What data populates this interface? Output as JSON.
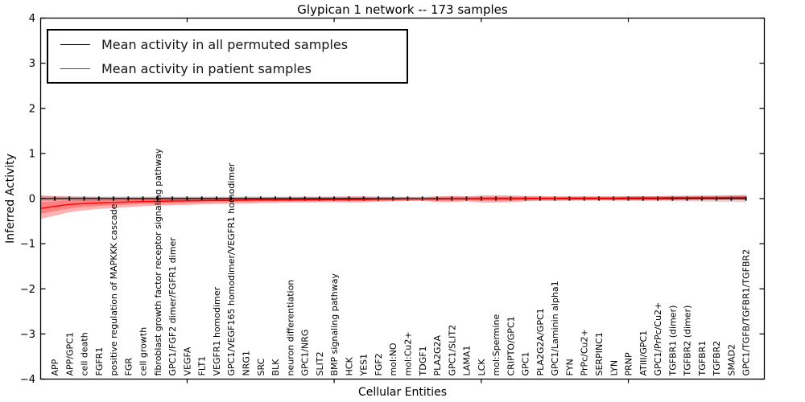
{
  "title": "Glypican 1 network -- 173 samples",
  "legend": {
    "items": [
      {
        "label": "Mean activity in all permuted samples",
        "color": "#000000"
      },
      {
        "label": "Mean activity in patient samples",
        "color": "#ff0000"
      }
    ]
  },
  "colors": {
    "permuted_line": "#000000",
    "permuted_band": "#d9d9d9",
    "patient_line": "#ff0000",
    "patient_band": "rgba(255,0,0,0.30)"
  },
  "chart_data": {
    "type": "line",
    "title": "Glypican 1 network -- 173 samples",
    "xlabel": "Cellular Entities",
    "ylabel": "Inferred Activity",
    "ylim": [
      -4,
      4
    ],
    "yticks": [
      4,
      3,
      2,
      1,
      0,
      -1,
      -2,
      -3,
      -4
    ],
    "grid": false,
    "legend_position": "upper left",
    "major_xtick_indices": [
      9,
      19,
      29,
      39
    ],
    "categories": [
      "APP",
      "APP/GPC1",
      "cell death",
      "FGFR1",
      "positive regulation of MAPKKK cascade",
      "FGR",
      "cell growth",
      "fibroblast growth factor receptor signaling pathway",
      "GPC1/FGF2 dimer/FGFR1 dimer",
      "VEGFA",
      "FLT1",
      "VEGFR1 homodimer",
      "GPC1/VEGF165 homodimer/VEGFR1 homodimer",
      "NRG1",
      "SRC",
      "BLK",
      "neuron differentiation",
      "GPC1/NRG",
      "SLIT2",
      "BMP signaling pathway",
      "HCK",
      "YES1",
      "FGF2",
      "mol:NO",
      "mol:Cu2+",
      "TDGF1",
      "PLA2G2A",
      "GPC1/SLIT2",
      "LAMA1",
      "LCK",
      "mol:Spermine",
      "CRIPTO/GPC1",
      "GPC1",
      "PLA2G2A/GPC1",
      "GPC1/Laminin alpha1",
      "FYN",
      "PrPc/Cu2+",
      "SERPINC1",
      "LYN",
      "PRNP",
      "ATIII/GPC1",
      "GPC1/PrPc/Cu2+",
      "TGFBR1 (dimer)",
      "TGFBR2 (dimer)",
      "TGFBR1",
      "TGFBR2",
      "SMAD2",
      "GPC1/TGFB/TGFBR1/TGFBR2"
    ],
    "series": [
      {
        "name": "Mean activity in all permuted samples",
        "color": "#000000",
        "constant_value": 0,
        "band_half": [
          0.05,
          0.05,
          0.05,
          0.045,
          0.045,
          0.045,
          0.045,
          0.045,
          0.045,
          0.045,
          0.045,
          0.045,
          0.045,
          0.045,
          0.045,
          0.045,
          0.045,
          0.045,
          0.045,
          0.045,
          0.045,
          0.045,
          0.045,
          0.045,
          0.045,
          0.045,
          0.045,
          0.045,
          0.045,
          0.045,
          0.045,
          0.045,
          0.045,
          0.045,
          0.045,
          0.045,
          0.045,
          0.045,
          0.045,
          0.05,
          0.055,
          0.055,
          0.06,
          0.06,
          0.065,
          0.07,
          0.075,
          0.08
        ]
      },
      {
        "name": "Mean activity in patient samples",
        "color": "#ff0000",
        "values": [
          -0.17,
          -0.13,
          -0.11,
          -0.095,
          -0.085,
          -0.075,
          -0.065,
          -0.06,
          -0.055,
          -0.05,
          -0.045,
          -0.04,
          -0.04,
          -0.035,
          -0.03,
          -0.03,
          -0.03,
          -0.025,
          -0.025,
          -0.02,
          -0.02,
          -0.02,
          -0.015,
          -0.015,
          -0.01,
          -0.01,
          -0.01,
          -0.005,
          -0.005,
          0,
          0,
          0,
          0.005,
          0.005,
          0.005,
          0.01,
          0.01,
          0.01,
          0.01,
          0.015,
          0.015,
          0.015,
          0.02,
          0.02,
          0.02,
          0.02,
          0.025,
          0.025
        ],
        "band_lo": [
          -0.38,
          -0.3,
          -0.26,
          -0.23,
          -0.21,
          -0.19,
          -0.17,
          -0.16,
          -0.15,
          -0.14,
          -0.13,
          -0.12,
          -0.115,
          -0.11,
          -0.1,
          -0.095,
          -0.09,
          -0.09,
          -0.085,
          -0.08,
          -0.09,
          -0.085,
          -0.07,
          -0.06,
          -0.055,
          -0.05,
          -0.075,
          -0.08,
          -0.06,
          -0.09,
          -0.09,
          -0.08,
          -0.06,
          -0.05,
          -0.05,
          -0.045,
          -0.04,
          -0.04,
          -0.04,
          -0.04,
          -0.04,
          -0.035,
          -0.035,
          -0.03,
          -0.03,
          -0.03,
          -0.03,
          -0.035
        ],
        "band_hi": [
          0.055,
          0.045,
          0.04,
          0.035,
          0.03,
          0.03,
          0.03,
          0.03,
          0.03,
          0.03,
          0.03,
          0.03,
          0.03,
          0.03,
          0.03,
          0.035,
          0.035,
          0.04,
          0.04,
          0.04,
          0.05,
          0.05,
          0.04,
          0.035,
          0.035,
          0.03,
          0.05,
          0.06,
          0.05,
          0.07,
          0.075,
          0.07,
          0.06,
          0.055,
          0.05,
          0.05,
          0.05,
          0.05,
          0.05,
          0.055,
          0.055,
          0.055,
          0.06,
          0.06,
          0.065,
          0.065,
          0.07,
          0.075
        ]
      }
    ],
    "left_edge_extrapolation": {
      "patient_mean": -0.22,
      "patient_lo": -0.45,
      "patient_hi": 0.07,
      "permuted_half": 0.06
    }
  }
}
